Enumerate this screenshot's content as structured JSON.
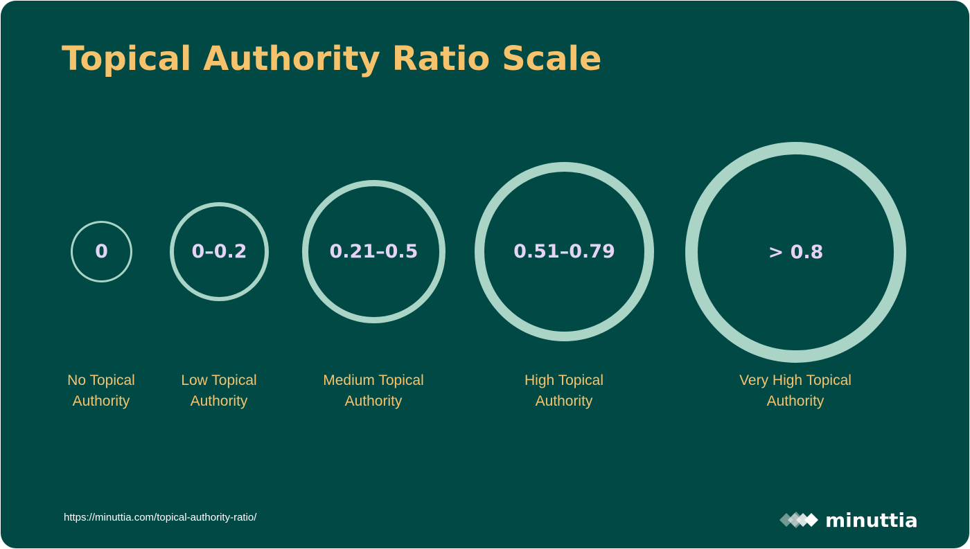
{
  "title": "Topical Authority Ratio Scale",
  "scale": [
    {
      "value": "0",
      "label_line1": "No Topical",
      "label_line2": "Authority"
    },
    {
      "value": "0–0.2",
      "label_line1": "Low Topical",
      "label_line2": "Authority"
    },
    {
      "value": "0.21–0.5",
      "label_line1": "Medium Topical",
      "label_line2": "Authority"
    },
    {
      "value": "0.51–0.79",
      "label_line1": "High Topical",
      "label_line2": "Authority"
    },
    {
      "value": "> 0.8",
      "label_line1": "Very High Topical",
      "label_line2": "Authority"
    }
  ],
  "footer": {
    "url": "https://minuttia.com/topical-authority-ratio/",
    "brand": "minuttia"
  },
  "colors": {
    "background": "#004945",
    "title": "#f6c26c",
    "ring": "#a9d4c6",
    "ring_value": "#e7d3f6",
    "label": "#f6c26c"
  },
  "icons": {
    "brand_logo": "diamond-cluster-icon"
  }
}
